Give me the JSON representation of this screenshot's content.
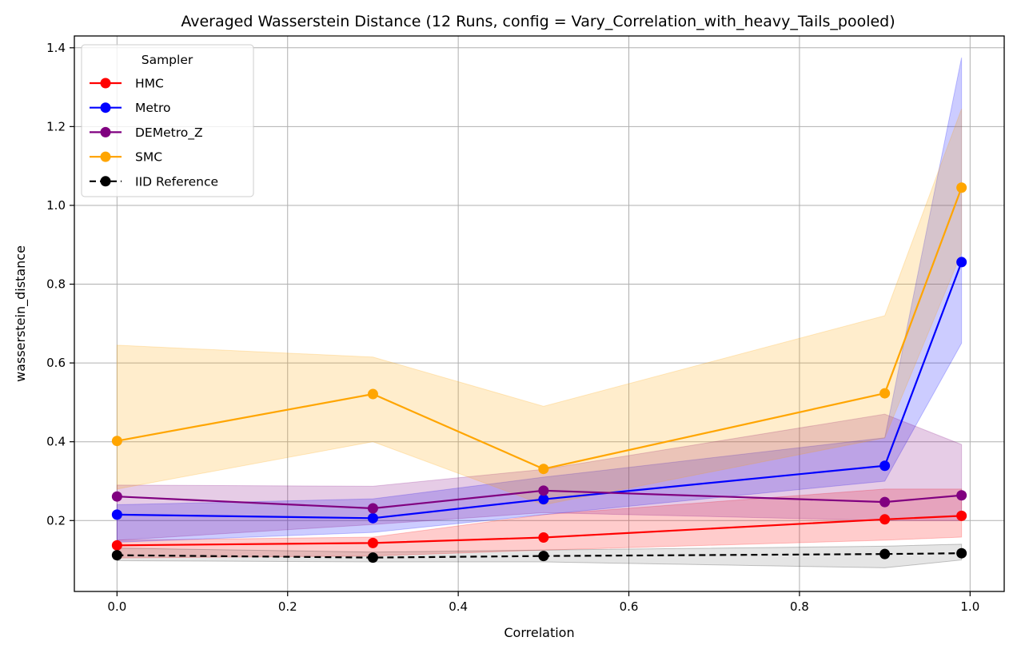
{
  "chart_data": {
    "type": "line",
    "title": "Averaged Wasserstein Distance (12 Runs, config = Vary_Correlation_with_heavy_Tails_pooled)",
    "xlabel": "Correlation",
    "ylabel": "wasserstein_distance",
    "xlim": [
      -0.05,
      1.04
    ],
    "ylim": [
      0.02,
      1.43
    ],
    "xticks": [
      0.0,
      0.2,
      0.4,
      0.6,
      0.8,
      1.0
    ],
    "xtick_labels": [
      "0.0",
      "0.2",
      "0.4",
      "0.6",
      "0.8",
      "1.0"
    ],
    "yticks": [
      0.2,
      0.4,
      0.6,
      0.8,
      1.0,
      1.2,
      1.4
    ],
    "ytick_labels": [
      "0.2",
      "0.4",
      "0.6",
      "0.8",
      "1.0",
      "1.2",
      "1.4"
    ],
    "grid": true,
    "legend": {
      "title": "Sampler",
      "position": "top-left"
    },
    "x": [
      0.0,
      0.3,
      0.5,
      0.9,
      0.99
    ],
    "series": [
      {
        "name": "HMC",
        "color": "#ff0000",
        "style": "solid",
        "values": [
          0.137,
          0.143,
          0.157,
          0.203,
          0.212
        ],
        "band_lower": [
          0.105,
          0.11,
          0.125,
          0.15,
          0.158
        ],
        "band_upper": [
          0.15,
          0.158,
          0.215,
          0.28,
          0.28
        ]
      },
      {
        "name": "Metro",
        "color": "#0000ff",
        "style": "solid",
        "values": [
          0.215,
          0.206,
          0.254,
          0.339,
          0.856
        ],
        "band_lower": [
          0.145,
          0.17,
          0.215,
          0.3,
          0.65
        ],
        "band_upper": [
          0.24,
          0.255,
          0.31,
          0.41,
          1.375
        ]
      },
      {
        "name": "DEMetro_Z",
        "color": "#800080",
        "style": "solid",
        "values": [
          0.261,
          0.231,
          0.276,
          0.247,
          0.264
        ],
        "band_lower": [
          0.15,
          0.19,
          0.22,
          0.2,
          0.2
        ],
        "band_upper": [
          0.29,
          0.287,
          0.33,
          0.47,
          0.393
        ]
      },
      {
        "name": "SMC",
        "color": "#ffa500",
        "style": "solid",
        "values": [
          0.402,
          0.521,
          0.331,
          0.523,
          1.045
        ],
        "band_lower": [
          0.28,
          0.4,
          0.24,
          0.41,
          0.88
        ],
        "band_upper": [
          0.645,
          0.615,
          0.49,
          0.72,
          1.245
        ]
      },
      {
        "name": "IID Reference",
        "color": "#000000",
        "style": "dashed",
        "values": [
          0.112,
          0.106,
          0.11,
          0.115,
          0.117
        ],
        "band_lower": [
          0.098,
          0.095,
          0.095,
          0.08,
          0.1
        ],
        "band_upper": [
          0.13,
          0.12,
          0.125,
          0.135,
          0.14
        ]
      }
    ]
  }
}
